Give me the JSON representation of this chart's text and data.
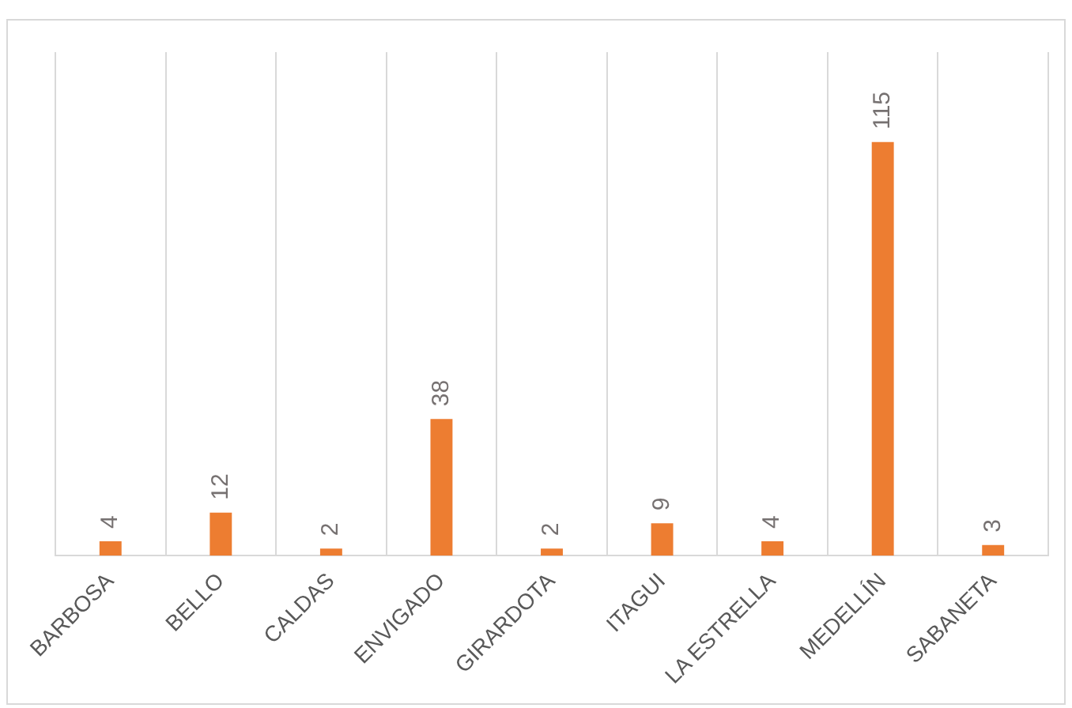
{
  "chart_data": {
    "type": "bar",
    "categories": [
      "BARBOSA",
      "BELLO",
      "CALDAS",
      "ENVIGADO",
      "GIRARDOTA",
      "ITAGUI",
      "LA ESTRELLA",
      "MEDELLÍN",
      "SABANETA"
    ],
    "values": [
      4,
      12,
      2,
      38,
      2,
      9,
      4,
      115,
      3
    ],
    "color": "#ed7d31",
    "data_labels": true,
    "grid": "x",
    "legend": false
  }
}
